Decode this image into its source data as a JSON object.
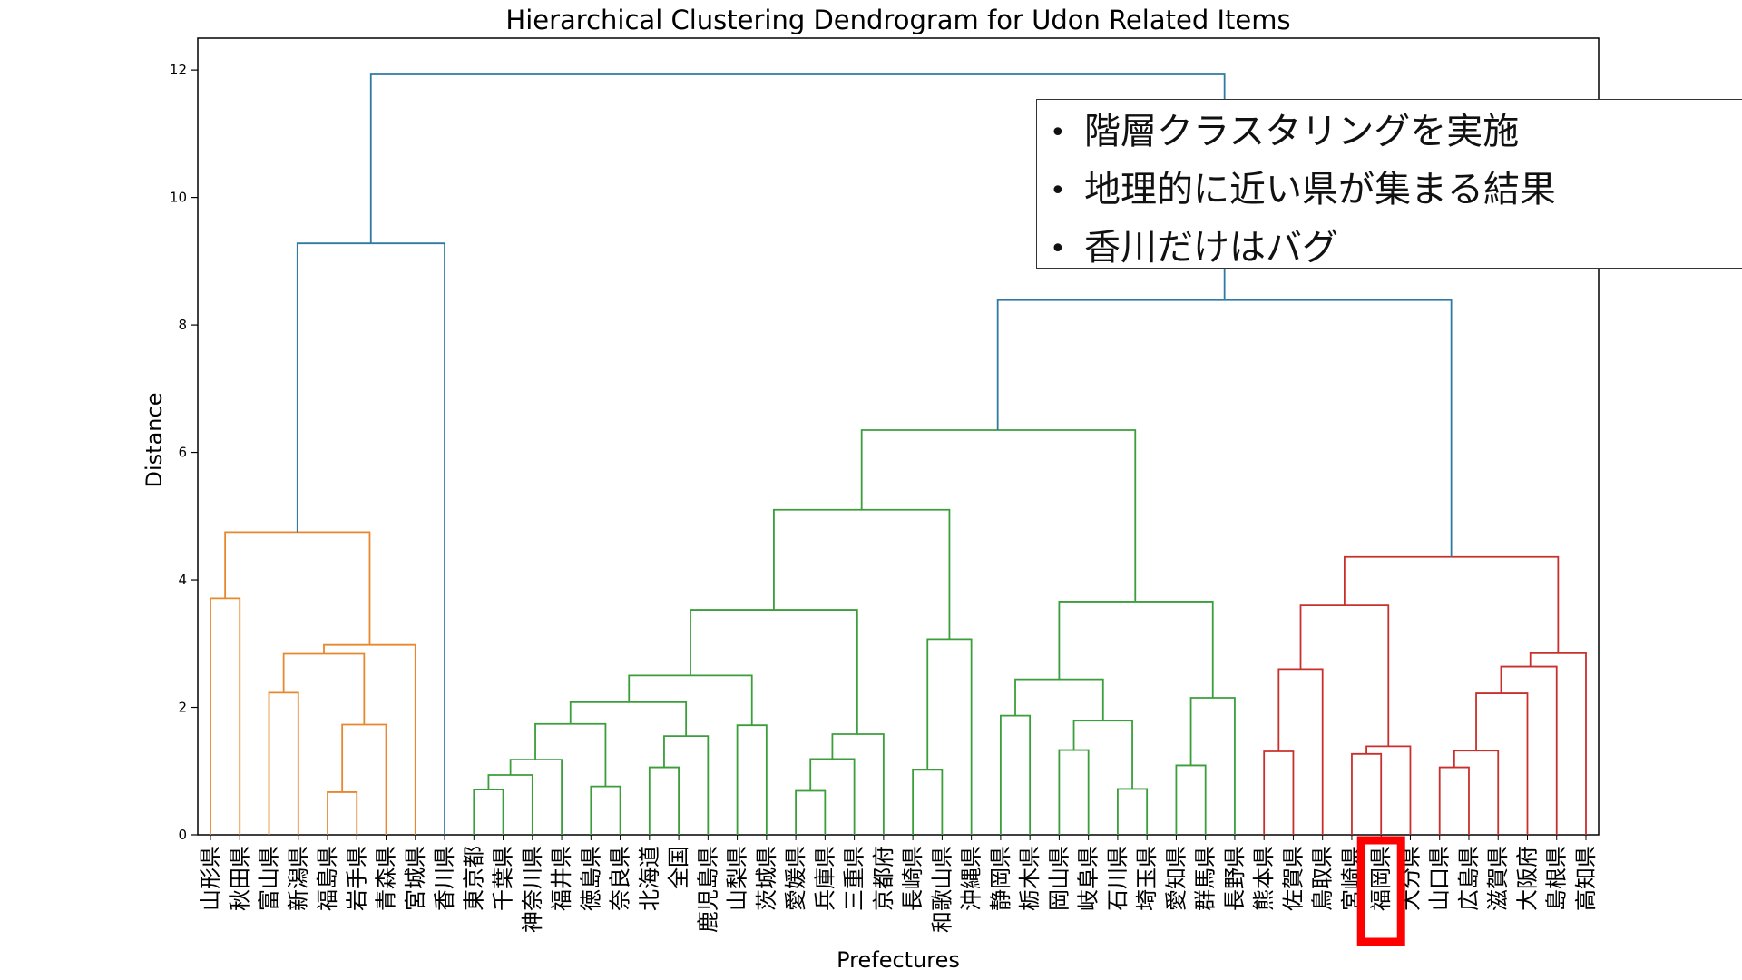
{
  "chart_data": {
    "type": "dendrogram",
    "title": "Hierarchical Clustering Dendrogram for Udon Related Items",
    "xlabel": "Prefectures",
    "ylabel": "Distance",
    "ylim": [
      0,
      12.5
    ],
    "yticks": [
      0,
      2,
      4,
      6,
      8,
      10,
      12
    ],
    "leaves": [
      "山形県",
      "秋田県",
      "富山県",
      "新潟県",
      "福島県",
      "岩手県",
      "青森県",
      "宮城県",
      "香川県",
      "東京都",
      "千葉県",
      "神奈川県",
      "福井県",
      "徳島県",
      "奈良県",
      "北海道",
      "全国",
      "鹿児島県",
      "山梨県",
      "茨城県",
      "愛媛県",
      "兵庫県",
      "三重県",
      "京都府",
      "長崎県",
      "和歌山県",
      "沖縄県",
      "静岡県",
      "栃木県",
      "岡山県",
      "岐阜県",
      "石川県",
      "埼玉県",
      "愛知県",
      "群馬県",
      "長野県",
      "熊本県",
      "佐賀県",
      "鳥取県",
      "宮崎県",
      "福岡県",
      "大分県",
      "山口県",
      "広島県",
      "滋賀県",
      "大阪府",
      "島根県",
      "高知県"
    ],
    "highlighted_leaf": "福岡県",
    "links": [
      {
        "l": [
          4.5,
          0
        ],
        "r": [
          5.5,
          0
        ],
        "h": 0.67,
        "c": "orange"
      },
      {
        "l": [
          5,
          0.67
        ],
        "r": [
          6.5,
          0
        ],
        "h": 1.73,
        "c": "orange"
      },
      {
        "l": [
          2.5,
          0
        ],
        "r": [
          3.5,
          0
        ],
        "h": 2.23,
        "c": "orange"
      },
      {
        "l": [
          3,
          2.23
        ],
        "r": [
          5.75,
          1.73
        ],
        "h": 2.84,
        "c": "orange"
      },
      {
        "l": [
          4.375,
          2.84
        ],
        "r": [
          7.5,
          0
        ],
        "h": 2.98,
        "c": "orange"
      },
      {
        "l": [
          0.5,
          0
        ],
        "r": [
          1.5,
          0
        ],
        "h": 3.71,
        "c": "orange"
      },
      {
        "l": [
          1,
          3.71
        ],
        "r": [
          5.94,
          2.98
        ],
        "h": 4.75,
        "c": "orange"
      },
      {
        "l": [
          3.47,
          4.75
        ],
        "r": [
          8.5,
          0
        ],
        "h": 9.28,
        "c": "blue"
      },
      {
        "l": [
          9.5,
          0
        ],
        "r": [
          10.5,
          0
        ],
        "h": 0.71,
        "c": "green"
      },
      {
        "l": [
          10,
          0.71
        ],
        "r": [
          11.5,
          0
        ],
        "h": 0.94,
        "c": "green"
      },
      {
        "l": [
          10.75,
          0.94
        ],
        "r": [
          12.5,
          0
        ],
        "h": 1.18,
        "c": "green"
      },
      {
        "l": [
          13.5,
          0
        ],
        "r": [
          14.5,
          0
        ],
        "h": 0.76,
        "c": "green"
      },
      {
        "l": [
          11.6,
          1.18
        ],
        "r": [
          14,
          0.76
        ],
        "h": 1.74,
        "c": "green"
      },
      {
        "l": [
          15.5,
          0
        ],
        "r": [
          16.5,
          0
        ],
        "h": 1.06,
        "c": "green"
      },
      {
        "l": [
          16,
          1.06
        ],
        "r": [
          17.5,
          0
        ],
        "h": 1.55,
        "c": "green"
      },
      {
        "l": [
          12.8,
          1.74
        ],
        "r": [
          16.75,
          1.55
        ],
        "h": 2.08,
        "c": "green"
      },
      {
        "l": [
          18.5,
          0
        ],
        "r": [
          19.5,
          0
        ],
        "h": 1.72,
        "c": "green"
      },
      {
        "l": [
          14.8,
          2.08
        ],
        "r": [
          19,
          1.72
        ],
        "h": 2.5,
        "c": "green"
      },
      {
        "l": [
          20.5,
          0
        ],
        "r": [
          21.5,
          0
        ],
        "h": 0.69,
        "c": "green"
      },
      {
        "l": [
          21,
          0.69
        ],
        "r": [
          22.5,
          0
        ],
        "h": 1.19,
        "c": "green"
      },
      {
        "l": [
          21.75,
          1.19
        ],
        "r": [
          23.5,
          0
        ],
        "h": 1.58,
        "c": "green"
      },
      {
        "l": [
          16.9,
          2.5
        ],
        "r": [
          22.6,
          1.58
        ],
        "h": 3.53,
        "c": "green"
      },
      {
        "l": [
          24.5,
          0
        ],
        "r": [
          25.5,
          0
        ],
        "h": 1.02,
        "c": "green"
      },
      {
        "l": [
          25,
          1.02
        ],
        "r": [
          26.5,
          0
        ],
        "h": 3.07,
        "c": "green"
      },
      {
        "l": [
          19.75,
          3.53
        ],
        "r": [
          25.75,
          3.07
        ],
        "h": 5.1,
        "c": "green"
      },
      {
        "l": [
          27.5,
          0
        ],
        "r": [
          28.5,
          0
        ],
        "h": 1.87,
        "c": "green"
      },
      {
        "l": [
          29.5,
          0
        ],
        "r": [
          30.5,
          0
        ],
        "h": 1.33,
        "c": "green"
      },
      {
        "l": [
          31.5,
          0
        ],
        "r": [
          32.5,
          0
        ],
        "h": 0.72,
        "c": "green"
      },
      {
        "l": [
          30,
          1.33
        ],
        "r": [
          32,
          0.72
        ],
        "h": 1.79,
        "c": "green"
      },
      {
        "l": [
          28,
          1.87
        ],
        "r": [
          31,
          1.79
        ],
        "h": 2.44,
        "c": "green"
      },
      {
        "l": [
          33.5,
          0
        ],
        "r": [
          34.5,
          0
        ],
        "h": 1.09,
        "c": "green"
      },
      {
        "l": [
          34,
          1.09
        ],
        "r": [
          35.5,
          0
        ],
        "h": 2.15,
        "c": "green"
      },
      {
        "l": [
          29.5,
          2.44
        ],
        "r": [
          34.75,
          2.15
        ],
        "h": 3.66,
        "c": "green"
      },
      {
        "l": [
          22.75,
          5.1
        ],
        "r": [
          32.1,
          3.66
        ],
        "h": 6.35,
        "c": "green"
      },
      {
        "l": [
          36.5,
          0
        ],
        "r": [
          37.5,
          0
        ],
        "h": 1.31,
        "c": "red"
      },
      {
        "l": [
          37,
          1.31
        ],
        "r": [
          38.5,
          0
        ],
        "h": 2.6,
        "c": "red"
      },
      {
        "l": [
          39.5,
          0
        ],
        "r": [
          40.5,
          0
        ],
        "h": 1.27,
        "c": "red"
      },
      {
        "l": [
          40,
          1.27
        ],
        "r": [
          41.5,
          0
        ],
        "h": 1.39,
        "c": "red"
      },
      {
        "l": [
          37.75,
          2.6
        ],
        "r": [
          40.75,
          1.39
        ],
        "h": 3.6,
        "c": "red"
      },
      {
        "l": [
          42.5,
          0
        ],
        "r": [
          43.5,
          0
        ],
        "h": 1.06,
        "c": "red"
      },
      {
        "l": [
          43,
          1.06
        ],
        "r": [
          44.5,
          0
        ],
        "h": 1.32,
        "c": "red"
      },
      {
        "l": [
          43.75,
          1.32
        ],
        "r": [
          45.5,
          0
        ],
        "h": 2.22,
        "c": "red"
      },
      {
        "l": [
          44.6,
          2.22
        ],
        "r": [
          46.5,
          0
        ],
        "h": 2.64,
        "c": "red"
      },
      {
        "l": [
          45.6,
          2.64
        ],
        "r": [
          47.5,
          0
        ],
        "h": 2.85,
        "c": "red"
      },
      {
        "l": [
          39.25,
          3.6
        ],
        "r": [
          46.55,
          2.85
        ],
        "h": 4.36,
        "c": "red"
      },
      {
        "l": [
          27.4,
          6.35
        ],
        "r": [
          42.9,
          4.36
        ],
        "h": 8.39,
        "c": "blue"
      },
      {
        "l": [
          5.98,
          9.28
        ],
        "r": [
          35.15,
          8.39
        ],
        "h": 11.93,
        "c": "blue"
      }
    ],
    "colors": {
      "orange": "#e8882e",
      "green": "#3a9e3a",
      "red": "#c9302c",
      "blue": "#2f7aa3",
      "highlight": "#ff0000"
    }
  },
  "notes": [
    "階層クラスタリングを実施",
    "地理的に近い県が集まる結果",
    "香川だけはバグ"
  ]
}
